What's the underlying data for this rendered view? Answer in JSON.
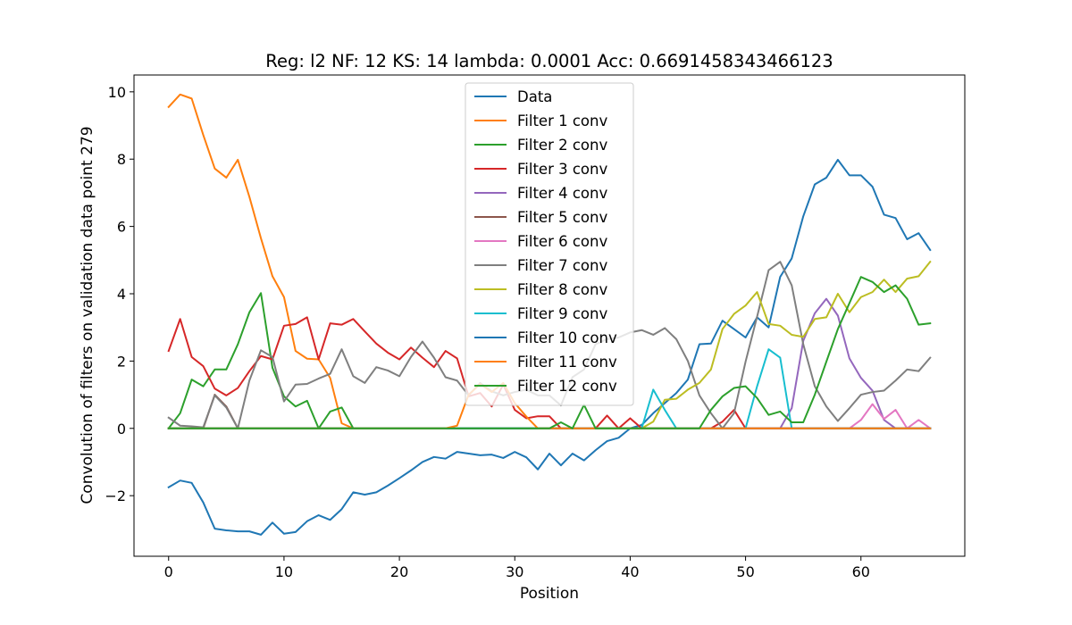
{
  "chart_data": {
    "type": "line",
    "title": "Reg: l2  NF: 12  KS: 14  lambda: 0.0001 Acc: 0.6691458343466123",
    "xlabel": "Position",
    "ylabel": "Convolution of filters on validation data point 279",
    "xlim": [
      -3,
      69
    ],
    "ylim": [
      -3.8,
      10.5
    ],
    "xticks": [
      0,
      10,
      20,
      30,
      40,
      50,
      60
    ],
    "yticks": [
      -2,
      0,
      2,
      4,
      6,
      8,
      10
    ],
    "grid": false,
    "legend_position": "upper-center",
    "series": [
      {
        "name": "Data",
        "color": "#1f77b4",
        "values": [
          -1.75,
          -1.55,
          -1.62,
          -2.2,
          -2.98,
          -3.03,
          -3.06,
          -3.06,
          -3.16,
          -2.8,
          -3.13,
          -3.08,
          -2.76,
          -2.58,
          -2.72,
          -2.4,
          -1.9,
          -1.97,
          -1.9,
          -1.7,
          -1.48,
          -1.25,
          -1.0,
          -0.85,
          -0.9,
          -0.7,
          -0.75,
          -0.8,
          -0.78,
          -0.88,
          -0.7,
          -0.86,
          -1.22,
          -0.75,
          -1.1,
          -0.75,
          -0.95,
          -0.65,
          -0.38,
          -0.28,
          0.0,
          0.1,
          0.45,
          0.75,
          1.05,
          1.45,
          2.5,
          2.52,
          3.2,
          2.95,
          2.7,
          3.3,
          3.0,
          4.5,
          5.05,
          6.3,
          7.25,
          7.45,
          7.98,
          7.52,
          7.52,
          7.18,
          6.35,
          6.25,
          5.62,
          5.8,
          5.3
        ]
      },
      {
        "name": "Filter 1 conv",
        "color": "#ff7f0e",
        "values": [
          9.55,
          9.92,
          9.8,
          8.72,
          7.72,
          7.45,
          7.98,
          6.88,
          5.65,
          4.52,
          3.9,
          2.3,
          2.07,
          2.05,
          1.5,
          0.15,
          0,
          0,
          0,
          0,
          0,
          0,
          0,
          0,
          0,
          0,
          0,
          0,
          0,
          0,
          0,
          0,
          0,
          0,
          0,
          0,
          0,
          0,
          0,
          0,
          0,
          0,
          0,
          0,
          0,
          0,
          0,
          0,
          0,
          0,
          0,
          0,
          0,
          0,
          0,
          0,
          0,
          0,
          0,
          0,
          0,
          0,
          0,
          0,
          0,
          0,
          0
        ]
      },
      {
        "name": "Filter 2 conv",
        "color": "#2ca02c",
        "values": [
          0,
          0.45,
          1.45,
          1.25,
          1.75,
          1.75,
          2.5,
          3.45,
          4.02,
          1.8,
          0.95,
          0.65,
          0.82,
          0,
          0.5,
          0.62,
          0,
          0,
          0,
          0,
          0,
          0,
          0,
          0,
          0,
          0,
          0,
          0,
          0,
          0,
          0,
          0,
          0,
          0,
          0,
          0,
          0,
          0,
          0,
          0,
          0,
          0,
          0,
          0,
          0,
          0,
          0,
          0,
          0,
          0,
          0,
          0,
          0,
          0,
          0,
          0,
          0,
          0,
          0,
          0,
          0,
          0,
          0,
          0,
          0,
          0,
          0
        ]
      },
      {
        "name": "Filter 3 conv",
        "color": "#d62728",
        "values": [
          2.3,
          3.25,
          2.12,
          1.85,
          1.18,
          0.98,
          1.2,
          1.7,
          2.15,
          2.05,
          3.05,
          3.1,
          3.3,
          2.05,
          3.12,
          3.08,
          3.25,
          2.88,
          2.52,
          2.25,
          2.05,
          2.4,
          2.1,
          1.82,
          2.3,
          2.08,
          0.95,
          1.05,
          0.65,
          1.3,
          0.55,
          0.3,
          0.36,
          0.36,
          0,
          0,
          0,
          0,
          0.38,
          0,
          0.3,
          0,
          0,
          0,
          0,
          0,
          0,
          0,
          0.2,
          0.55,
          0,
          0,
          0,
          0,
          0,
          0,
          0,
          0,
          0,
          0,
          0,
          0,
          0,
          0,
          0,
          0,
          0
        ]
      },
      {
        "name": "Filter 4 conv",
        "color": "#9467bd",
        "values": [
          0,
          0,
          0,
          0,
          0,
          0,
          0,
          0,
          0,
          0,
          0,
          0,
          0,
          0,
          0,
          0,
          0,
          0,
          0,
          0,
          0,
          0,
          0,
          0,
          0,
          0,
          0,
          0,
          0,
          0,
          0,
          0,
          0,
          0,
          0,
          0,
          0,
          0,
          0,
          0,
          0,
          0,
          0,
          0,
          0,
          0,
          0,
          0,
          0,
          0,
          0,
          0,
          0,
          0,
          0.6,
          2.6,
          3.42,
          3.85,
          3.35,
          2.08,
          1.5,
          1.12,
          0.25,
          0,
          0,
          0,
          0
        ]
      },
      {
        "name": "Filter 5 conv",
        "color": "#8c564b",
        "values": [
          0,
          0,
          0,
          0,
          1.0,
          0.65,
          0,
          0,
          0,
          0,
          0,
          0,
          0,
          0,
          0,
          0,
          0,
          0,
          0,
          0,
          0,
          0,
          0,
          0,
          0,
          0,
          0,
          0,
          0,
          0,
          0,
          0,
          0,
          0,
          0,
          0,
          0,
          0,
          0,
          0,
          0,
          0,
          0,
          0,
          0,
          0,
          0,
          0,
          0,
          0,
          0,
          0,
          0,
          0,
          0,
          0,
          0,
          0,
          0,
          0,
          0,
          0,
          0,
          0,
          0,
          0,
          0
        ]
      },
      {
        "name": "Filter 6 conv",
        "color": "#e377c2",
        "values": [
          0,
          0,
          0,
          0,
          0,
          0,
          0,
          0,
          0,
          0,
          0,
          0,
          0,
          0,
          0,
          0,
          0,
          0,
          0,
          0,
          0,
          0,
          0,
          0,
          0,
          0,
          0,
          0,
          0,
          0,
          0,
          0,
          0,
          0,
          0,
          0,
          0,
          0,
          0,
          0,
          0,
          0,
          0,
          0,
          0,
          0,
          0,
          0,
          0,
          0,
          0,
          0,
          0,
          0,
          0,
          0,
          0,
          0,
          0,
          0,
          0.25,
          0.72,
          0.28,
          0.55,
          0,
          0.25,
          0
        ]
      },
      {
        "name": "Filter 7 conv",
        "color": "#7f7f7f",
        "values": [
          0.32,
          0.08,
          0.06,
          0.03,
          0.98,
          0.62,
          0,
          1.42,
          2.32,
          2.12,
          0.8,
          1.3,
          1.32,
          1.48,
          1.62,
          2.35,
          1.55,
          1.35,
          1.82,
          1.72,
          1.55,
          2.12,
          2.58,
          2.1,
          1.52,
          1.42,
          0.98,
          1.35,
          1.1,
          0.98,
          1.08,
          1.15,
          0.98,
          0.98,
          0.68,
          1.52,
          1.75,
          2.5,
          2.65,
          2.7,
          2.85,
          2.92,
          2.78,
          2.98,
          2.65,
          2.0,
          0.98,
          0.45,
          0,
          0.45,
          1.98,
          3.32,
          4.7,
          4.95,
          4.25,
          2.5,
          1.25,
          0.65,
          0.22,
          0.6,
          1.0,
          1.08,
          1.12,
          1.42,
          1.75,
          1.7,
          2.1
        ]
      },
      {
        "name": "Filter 8 conv",
        "color": "#bcbd22",
        "values": [
          0,
          0,
          0,
          0,
          0,
          0,
          0,
          0,
          0,
          0,
          0,
          0,
          0,
          0,
          0,
          0,
          0,
          0,
          0,
          0,
          0,
          0,
          0,
          0,
          0,
          0,
          0,
          0,
          0,
          0,
          0,
          0,
          0,
          0,
          0,
          0,
          0,
          0,
          0,
          0,
          0,
          0,
          0.2,
          0.85,
          0.88,
          1.15,
          1.35,
          1.75,
          2.95,
          3.4,
          3.65,
          4.05,
          3.1,
          3.05,
          2.78,
          2.72,
          3.25,
          3.3,
          4.0,
          3.45,
          3.9,
          4.05,
          4.42,
          4.05,
          4.45,
          4.52,
          4.95
        ]
      },
      {
        "name": "Filter 9 conv",
        "color": "#17becf",
        "values": [
          0,
          0,
          0,
          0,
          0,
          0,
          0,
          0,
          0,
          0,
          0,
          0,
          0,
          0,
          0,
          0,
          0,
          0,
          0,
          0,
          0,
          0,
          0,
          0,
          0,
          0,
          0,
          0,
          0,
          0,
          0,
          0,
          0,
          0,
          0,
          0,
          0,
          0,
          0,
          0,
          0,
          0,
          1.15,
          0.55,
          0,
          0,
          0,
          0,
          0,
          0,
          0,
          1.25,
          2.35,
          2.1,
          0,
          0,
          0,
          0,
          0,
          0,
          0,
          0,
          0,
          0,
          0,
          0,
          0
        ]
      },
      {
        "name": "Filter 10 conv",
        "color": "#1f77b4",
        "values": [
          0,
          0,
          0,
          0,
          0,
          0,
          0,
          0,
          0,
          0,
          0,
          0,
          0,
          0,
          0,
          0,
          0,
          0,
          0,
          0,
          0,
          0,
          0,
          0,
          0,
          0,
          0,
          0,
          0,
          0,
          0,
          0,
          0,
          0,
          0,
          0,
          0,
          0,
          0,
          0,
          0,
          0,
          0,
          0,
          0,
          0,
          0,
          0,
          0,
          0,
          0,
          0,
          0,
          0,
          0,
          0,
          0,
          0,
          0,
          0,
          0,
          0,
          0,
          0,
          0,
          0,
          0
        ]
      },
      {
        "name": "Filter 11 conv",
        "color": "#ff7f0e",
        "values": [
          0,
          0,
          0,
          0,
          0,
          0,
          0,
          0,
          0,
          0,
          0,
          0,
          0,
          0,
          0,
          0,
          0,
          0,
          0,
          0,
          0,
          0,
          0,
          0,
          0,
          0.08,
          1.0,
          1.32,
          1.08,
          1.35,
          0.75,
          0.35,
          0,
          0,
          0,
          0,
          0,
          0,
          0,
          0,
          0,
          0,
          0,
          0,
          0,
          0,
          0,
          0,
          0,
          0,
          0,
          0,
          0,
          0,
          0,
          0,
          0,
          0,
          0,
          0,
          0,
          0,
          0,
          0,
          0,
          0,
          0
        ]
      },
      {
        "name": "Filter 12 conv",
        "color": "#2ca02c",
        "values": [
          0,
          0,
          0,
          0,
          0,
          0,
          0,
          0,
          0,
          0,
          0,
          0,
          0,
          0,
          0,
          0,
          0,
          0,
          0,
          0,
          0,
          0,
          0,
          0,
          0,
          0,
          0,
          0,
          0,
          0,
          0,
          0,
          0,
          0,
          0.18,
          0,
          0.7,
          0,
          0,
          0,
          0,
          0,
          0,
          0,
          0,
          0,
          0,
          0.55,
          0.95,
          1.2,
          1.25,
          0.9,
          0.4,
          0.5,
          0.18,
          0.18,
          1.0,
          1.98,
          2.95,
          3.72,
          4.5,
          4.35,
          4.05,
          4.25,
          3.85,
          3.08,
          3.12
        ]
      }
    ],
    "extra_series_note": ""
  }
}
